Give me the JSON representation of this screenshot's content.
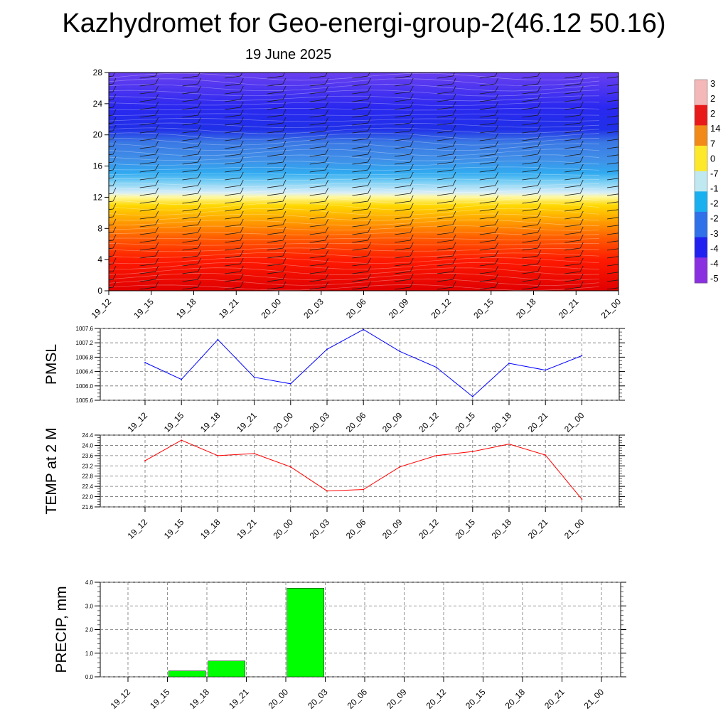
{
  "title": "Kazhydromet for Geo-energi-group-2(46.12 50.16)",
  "subtitle": "19 June 2025",
  "chart_data": [
    {
      "type": "heatmap",
      "name": "temperature-wind-profile",
      "x_labels": [
        "19_12",
        "19_15",
        "19_18",
        "19_21",
        "20_00",
        "20_03",
        "20_06",
        "20_09",
        "20_12",
        "20_15",
        "20_18",
        "20_21",
        "21_00"
      ],
      "y_ticks": [
        "0",
        "4",
        "8",
        "12",
        "16",
        "20",
        "24",
        "28"
      ],
      "ylim": [
        0,
        28
      ],
      "colorbar_labels": [
        "3",
        "2",
        "2",
        "14",
        "7",
        "0",
        "-7",
        "-1",
        "-2",
        "-2",
        "-3",
        "-4",
        "-4",
        "-5"
      ],
      "colorbar_colors": [
        "#f4b8b8",
        "#e81a1a",
        "#f28a1a",
        "#fde82a",
        "#bfe8f0",
        "#1ab0f0",
        "#3070e8",
        "#2020f0",
        "#8a30e0"
      ]
    },
    {
      "type": "line",
      "name": "pmsl",
      "ylabel": "PMSL",
      "x": [
        "19_12",
        "19_15",
        "19_18",
        "19_21",
        "20_00",
        "20_03",
        "20_06",
        "20_09",
        "20_12",
        "20_15",
        "20_18",
        "20_21",
        "21_00"
      ],
      "values": [
        1006.65,
        1006.18,
        1007.29,
        1006.24,
        1006.06,
        1007.02,
        1007.57,
        1006.96,
        1006.52,
        1005.7,
        1006.63,
        1006.44,
        1006.84
      ],
      "y_ticks": [
        "1005.6",
        "1006.0",
        "1006.4",
        "1006.8",
        "1007.2",
        "1007.6"
      ],
      "ylim": [
        1005.6,
        1007.6
      ],
      "color": "#0000ff"
    },
    {
      "type": "line",
      "name": "temp2m",
      "ylabel": "TEMP at 2 M",
      "x": [
        "19_12",
        "19_15",
        "19_18",
        "19_21",
        "20_00",
        "20_03",
        "20_06",
        "20_09",
        "20_12",
        "20_15",
        "20_18",
        "20_21",
        "21_00"
      ],
      "values": [
        23.4,
        24.2,
        23.6,
        23.68,
        23.16,
        22.22,
        22.28,
        23.16,
        23.6,
        23.76,
        24.05,
        23.62,
        21.9
      ],
      "y_ticks": [
        "21.6",
        "22.0",
        "22.4",
        "22.8",
        "23.2",
        "23.6",
        "24.0",
        "24.4"
      ],
      "ylim": [
        21.6,
        24.4
      ],
      "color": "#ff0000"
    },
    {
      "type": "bar",
      "name": "precip",
      "ylabel": "PRECIP, mm",
      "categories": [
        "19_12",
        "19_15",
        "19_18",
        "19_21",
        "20_00",
        "20_03",
        "20_06",
        "20_09",
        "20_12",
        "20_15",
        "20_18",
        "20_21",
        "21_00"
      ],
      "values": [
        0,
        0.25,
        0.67,
        0,
        3.75,
        0,
        0,
        0,
        0,
        0,
        0,
        0,
        0
      ],
      "y_ticks": [
        "0.0",
        "1.0",
        "2.0",
        "3.0",
        "4.0"
      ],
      "ylim": [
        0,
        4
      ],
      "color": "#00ff00"
    }
  ]
}
